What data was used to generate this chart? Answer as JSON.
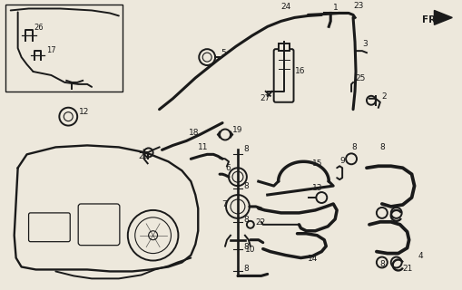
{
  "bg_color": "#ede8dc",
  "line_color": "#1a1a1a",
  "fig_width": 5.1,
  "fig_height": 3.2,
  "dpi": 100,
  "lw_main": 1.4,
  "lw_thick": 2.2,
  "lw_thin": 0.9
}
